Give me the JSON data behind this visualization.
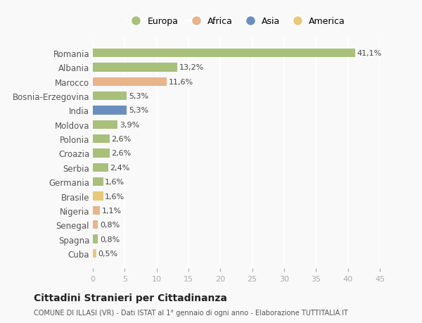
{
  "categories": [
    "Romania",
    "Albania",
    "Marocco",
    "Bosnia-Erzegovina",
    "India",
    "Moldova",
    "Polonia",
    "Croazia",
    "Serbia",
    "Germania",
    "Brasile",
    "Nigeria",
    "Senegal",
    "Spagna",
    "Cuba"
  ],
  "values": [
    41.1,
    13.2,
    11.6,
    5.3,
    5.3,
    3.9,
    2.6,
    2.6,
    2.4,
    1.6,
    1.6,
    1.1,
    0.8,
    0.8,
    0.5
  ],
  "labels": [
    "41,1%",
    "13,2%",
    "11,6%",
    "5,3%",
    "5,3%",
    "3,9%",
    "2,6%",
    "2,6%",
    "2,4%",
    "1,6%",
    "1,6%",
    "1,1%",
    "0,8%",
    "0,8%",
    "0,5%"
  ],
  "colors": [
    "#a8c07a",
    "#a8c07a",
    "#e8b48a",
    "#a8c07a",
    "#6a8fbf",
    "#a8c07a",
    "#a8c07a",
    "#a8c07a",
    "#a8c07a",
    "#a8c07a",
    "#e8c87a",
    "#e8b48a",
    "#e8b48a",
    "#a8c07a",
    "#e8c87a"
  ],
  "legend_labels": [
    "Europa",
    "Africa",
    "Asia",
    "America"
  ],
  "legend_colors": [
    "#a8c07a",
    "#e8b48a",
    "#6a8fbf",
    "#e8c87a"
  ],
  "title": "Cittadini Stranieri per Cittadinanza",
  "subtitle": "COMUNE DI ILLASI (VR) - Dati ISTAT al 1° gennaio di ogni anno - Elaborazione TUTTITALIA.IT",
  "xlim": [
    0,
    45
  ],
  "xticks": [
    0,
    5,
    10,
    15,
    20,
    25,
    30,
    35,
    40,
    45
  ],
  "bg_color": "#f9f9f9",
  "grid_color": "#ffffff",
  "bar_height": 0.6
}
